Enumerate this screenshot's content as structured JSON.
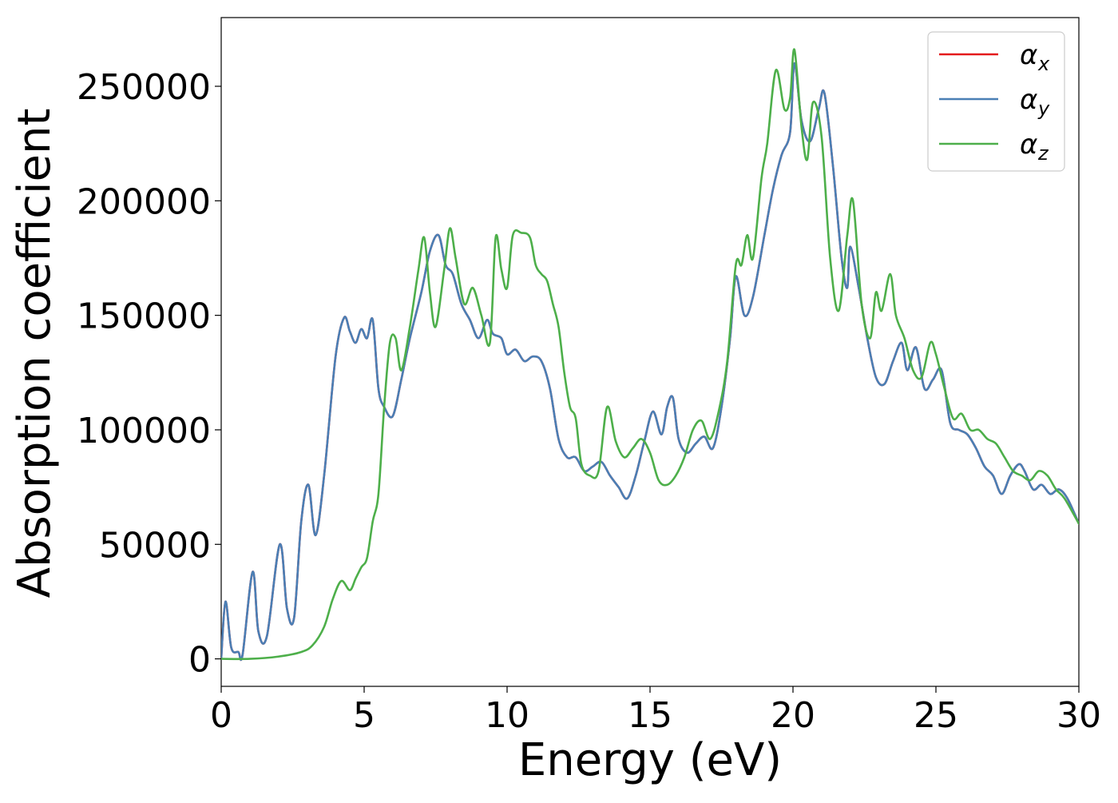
{
  "chart_data": {
    "type": "line",
    "title": "",
    "xlabel": "Energy (eV)",
    "ylabel": "Absorption coefficient",
    "xlim": [
      0,
      30
    ],
    "ylim": [
      -12000,
      280000
    ],
    "xticks": [
      0,
      5,
      10,
      15,
      20,
      25,
      30
    ],
    "yticks": [
      0,
      50000,
      100000,
      150000,
      200000,
      250000
    ],
    "grid": false,
    "legend_position": "top-right",
    "series": [
      {
        "name": "α",
        "subscript": "x",
        "color": "#e41a1c",
        "x": [
          0,
          0.15,
          0.35,
          0.6,
          0.75,
          1.1,
          1.3,
          1.6,
          2.05,
          2.3,
          2.55,
          2.8,
          3.05,
          3.3,
          3.6,
          4.0,
          4.3,
          4.5,
          4.7,
          4.9,
          5.1,
          5.3,
          5.5,
          5.7,
          6.0,
          6.3,
          6.6,
          7.0,
          7.3,
          7.6,
          7.85,
          8.1,
          8.4,
          8.7,
          9.0,
          9.3,
          9.5,
          9.8,
          10.0,
          10.3,
          10.6,
          10.9,
          11.2,
          11.5,
          11.8,
          12.1,
          12.4,
          12.7,
          13.0,
          13.3,
          13.6,
          13.9,
          14.2,
          14.5,
          14.8,
          15.1,
          15.4,
          15.6,
          15.8,
          16.0,
          16.3,
          16.6,
          16.9,
          17.2,
          17.5,
          17.8,
          18.0,
          18.3,
          18.6,
          19.0,
          19.3,
          19.6,
          19.9,
          20.05,
          20.3,
          20.6,
          20.9,
          21.1,
          21.4,
          21.7,
          21.9,
          22.0,
          22.3,
          22.6,
          22.9,
          23.2,
          23.5,
          23.8,
          24.0,
          24.3,
          24.6,
          24.9,
          25.2,
          25.5,
          25.8,
          26.1,
          26.4,
          26.7,
          27.0,
          27.3,
          27.6,
          27.9,
          28.1,
          28.4,
          28.7,
          29.0,
          29.3,
          29.6,
          30.0
        ],
        "y": [
          0,
          25000,
          5000,
          3000,
          2000,
          38000,
          12000,
          10000,
          50000,
          22000,
          18000,
          60000,
          76000,
          54000,
          80000,
          132000,
          149000,
          143000,
          138000,
          144000,
          140000,
          148000,
          118000,
          110000,
          106000,
          122000,
          140000,
          160000,
          178000,
          185000,
          172000,
          168000,
          155000,
          148000,
          140000,
          148000,
          142000,
          140000,
          133000,
          135000,
          130000,
          132000,
          130000,
          118000,
          96000,
          88000,
          88000,
          82000,
          84000,
          86000,
          80000,
          75000,
          70000,
          80000,
          95000,
          108000,
          98000,
          110000,
          114000,
          96000,
          90000,
          94000,
          97000,
          92000,
          110000,
          140000,
          167000,
          150000,
          158000,
          185000,
          205000,
          220000,
          230000,
          260000,
          235000,
          226000,
          240000,
          247000,
          215000,
          175000,
          162000,
          180000,
          162000,
          140000,
          123000,
          120000,
          130000,
          138000,
          126000,
          136000,
          118000,
          122000,
          126000,
          103000,
          100000,
          98000,
          92000,
          84000,
          80000,
          72000,
          80000,
          85000,
          82000,
          74000,
          76000,
          72000,
          74000,
          70000,
          59000
        ]
      },
      {
        "name": "α",
        "subscript": "y",
        "color": "#4a7fb5",
        "x": [
          0,
          0.15,
          0.35,
          0.6,
          0.75,
          1.1,
          1.3,
          1.6,
          2.05,
          2.3,
          2.55,
          2.8,
          3.05,
          3.3,
          3.6,
          4.0,
          4.3,
          4.5,
          4.7,
          4.9,
          5.1,
          5.3,
          5.5,
          5.7,
          6.0,
          6.3,
          6.6,
          7.0,
          7.3,
          7.6,
          7.85,
          8.1,
          8.4,
          8.7,
          9.0,
          9.3,
          9.5,
          9.8,
          10.0,
          10.3,
          10.6,
          10.9,
          11.2,
          11.5,
          11.8,
          12.1,
          12.4,
          12.7,
          13.0,
          13.3,
          13.6,
          13.9,
          14.2,
          14.5,
          14.8,
          15.1,
          15.4,
          15.6,
          15.8,
          16.0,
          16.3,
          16.6,
          16.9,
          17.2,
          17.5,
          17.8,
          18.0,
          18.3,
          18.6,
          19.0,
          19.3,
          19.6,
          19.9,
          20.05,
          20.3,
          20.6,
          20.9,
          21.1,
          21.4,
          21.7,
          21.9,
          22.0,
          22.3,
          22.6,
          22.9,
          23.2,
          23.5,
          23.8,
          24.0,
          24.3,
          24.6,
          24.9,
          25.2,
          25.5,
          25.8,
          26.1,
          26.4,
          26.7,
          27.0,
          27.3,
          27.6,
          27.9,
          28.1,
          28.4,
          28.7,
          29.0,
          29.3,
          29.6,
          30.0
        ],
        "y": [
          0,
          25000,
          5000,
          3000,
          2000,
          38000,
          12000,
          10000,
          50000,
          22000,
          18000,
          60000,
          76000,
          54000,
          80000,
          132000,
          149000,
          143000,
          138000,
          144000,
          140000,
          148000,
          118000,
          110000,
          106000,
          122000,
          140000,
          160000,
          178000,
          185000,
          172000,
          168000,
          155000,
          148000,
          140000,
          148000,
          142000,
          140000,
          133000,
          135000,
          130000,
          132000,
          130000,
          118000,
          96000,
          88000,
          88000,
          82000,
          84000,
          86000,
          80000,
          75000,
          70000,
          80000,
          95000,
          108000,
          98000,
          110000,
          114000,
          96000,
          90000,
          94000,
          97000,
          92000,
          110000,
          140000,
          167000,
          150000,
          158000,
          185000,
          205000,
          220000,
          230000,
          260000,
          235000,
          226000,
          240000,
          247000,
          215000,
          175000,
          162000,
          180000,
          162000,
          140000,
          123000,
          120000,
          130000,
          138000,
          126000,
          136000,
          118000,
          122000,
          126000,
          103000,
          100000,
          98000,
          92000,
          84000,
          80000,
          72000,
          80000,
          85000,
          82000,
          74000,
          76000,
          72000,
          74000,
          70000,
          59000
        ]
      },
      {
        "name": "α",
        "subscript": "z",
        "color": "#4daf4a",
        "x": [
          0,
          1.0,
          2.0,
          2.8,
          3.2,
          3.6,
          3.9,
          4.2,
          4.5,
          4.7,
          4.9,
          5.1,
          5.3,
          5.5,
          5.7,
          5.9,
          6.1,
          6.3,
          6.6,
          6.9,
          7.1,
          7.3,
          7.5,
          7.8,
          8.0,
          8.2,
          8.5,
          8.8,
          9.1,
          9.4,
          9.6,
          9.8,
          10.0,
          10.2,
          10.5,
          10.8,
          11.0,
          11.2,
          11.4,
          11.6,
          11.8,
          12.0,
          12.2,
          12.4,
          12.6,
          12.9,
          13.2,
          13.5,
          13.8,
          14.1,
          14.4,
          14.7,
          15.0,
          15.3,
          15.6,
          15.9,
          16.2,
          16.5,
          16.8,
          17.1,
          17.4,
          17.7,
          18.0,
          18.2,
          18.4,
          18.6,
          18.9,
          19.1,
          19.4,
          19.7,
          19.9,
          20.05,
          20.3,
          20.5,
          20.7,
          21.0,
          21.3,
          21.6,
          21.9,
          22.1,
          22.4,
          22.7,
          22.9,
          23.1,
          23.4,
          23.6,
          23.9,
          24.2,
          24.5,
          24.8,
          25.0,
          25.3,
          25.6,
          25.9,
          26.2,
          26.5,
          26.8,
          27.1,
          27.4,
          27.7,
          28.0,
          28.3,
          28.6,
          28.9,
          29.2,
          29.5,
          30.0
        ],
        "y": [
          0,
          0,
          1000,
          3000,
          6000,
          14000,
          26000,
          34000,
          30000,
          35000,
          40000,
          44000,
          60000,
          72000,
          110000,
          138000,
          140000,
          126000,
          145000,
          170000,
          184000,
          160000,
          145000,
          170000,
          188000,
          175000,
          155000,
          162000,
          150000,
          138000,
          184000,
          170000,
          162000,
          185000,
          186000,
          184000,
          172000,
          168000,
          165000,
          155000,
          145000,
          125000,
          110000,
          105000,
          85000,
          80000,
          82000,
          110000,
          95000,
          88000,
          92000,
          96000,
          90000,
          78000,
          76000,
          80000,
          88000,
          100000,
          104000,
          96000,
          108000,
          130000,
          172000,
          172000,
          185000,
          175000,
          210000,
          225000,
          257000,
          240000,
          245000,
          266000,
          232000,
          218000,
          243000,
          228000,
          175000,
          152000,
          185000,
          200000,
          155000,
          140000,
          160000,
          152000,
          168000,
          150000,
          140000,
          126000,
          123000,
          138000,
          133000,
          118000,
          105000,
          107000,
          100000,
          100000,
          96000,
          94000,
          88000,
          82000,
          80000,
          78000,
          82000,
          80000,
          74000,
          70000,
          59000
        ]
      }
    ]
  }
}
